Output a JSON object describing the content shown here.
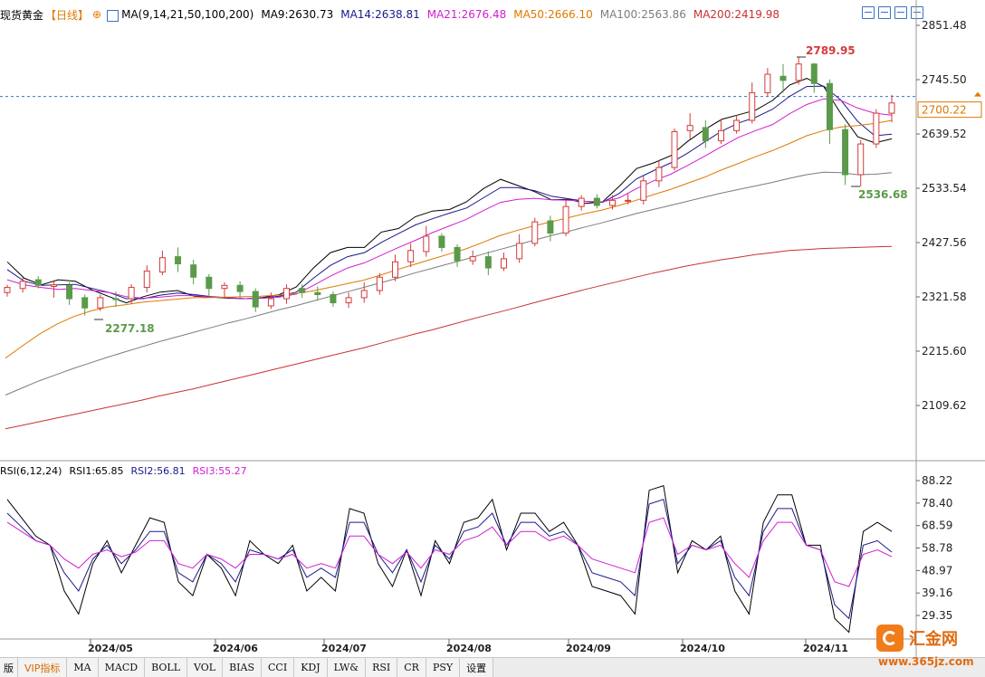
{
  "header": {
    "symbol": "现货黄金",
    "period": "【日线】",
    "ma_settings": "MA(9,14,21,50,100,200)",
    "ma9": "MA9:2630.73",
    "ma14": "MA14:2638.81",
    "ma21": "MA21:2676.48",
    "ma50": "MA50:2666.10",
    "ma100": "MA100:2563.86",
    "ma200": "MA200:2419.98"
  },
  "rsi_header": {
    "settings": "RSI(6,12,24)",
    "rsi1": "RSI1:65.85",
    "rsi2": "RSI2:56.81",
    "rsi3": "RSI3:55.27"
  },
  "tabs": [
    "版",
    "VIP指标",
    "MA",
    "MACD",
    "BOLL",
    "VOL",
    "BIAS",
    "CCI",
    "KDJ",
    "LW&",
    "RSI",
    "CR",
    "PSY",
    "设置"
  ],
  "watermark": {
    "name": "汇金网",
    "url": "www.365jz.com"
  },
  "colors": {
    "up": "#d43a3a",
    "down": "#5a9a4a",
    "ma9": "#000000",
    "ma14": "#1a1a8c",
    "ma21": "#d21ed2",
    "ma50": "#e07800",
    "ma100": "#7d7d7d",
    "ma200": "#c83232",
    "rsi1": "#000000",
    "rsi2": "#1a1a8c",
    "rsi3": "#d21ed2"
  },
  "chart_data": [
    {
      "type": "candlestick",
      "title": "现货黄金 日线",
      "y_ticks": [
        "2851.48",
        "2745.50",
        "2639.52",
        "2533.54",
        "2427.56",
        "2321.58",
        "2215.60",
        "2109.62"
      ],
      "ylim": [
        2050,
        2870
      ],
      "x_labels": [
        "2024/05",
        "2024/06",
        "2024/07",
        "2024/08",
        "2024/09",
        "2024/10",
        "2024/11"
      ],
      "current_price": "2700.22",
      "annotations": [
        {
          "label": "2789.95",
          "role": "high"
        },
        {
          "label": "2536.68",
          "role": "low"
        },
        {
          "label": "2277.18",
          "role": "low"
        }
      ],
      "ma_series": [
        {
          "name": "MA9",
          "values": [
            2390,
            2358,
            2345,
            2355,
            2352,
            2335,
            2322,
            2310,
            2322,
            2331,
            2334,
            2323,
            2321,
            2319,
            2318,
            2320,
            2326,
            2341,
            2378,
            2408,
            2418,
            2418,
            2448,
            2455,
            2478,
            2489,
            2492,
            2507,
            2533,
            2551,
            2539,
            2527,
            2511,
            2512,
            2504,
            2507,
            2538,
            2572,
            2583,
            2597,
            2625,
            2648,
            2668,
            2677,
            2686,
            2705,
            2735,
            2748,
            2732,
            2680,
            2634,
            2622,
            2630
          ]
        },
        {
          "name": "MA14",
          "values": [
            2375,
            2352,
            2344,
            2345,
            2346,
            2338,
            2330,
            2318,
            2318,
            2325,
            2329,
            2326,
            2322,
            2320,
            2318,
            2319,
            2323,
            2331,
            2358,
            2383,
            2400,
            2408,
            2428,
            2445,
            2462,
            2474,
            2485,
            2495,
            2515,
            2535,
            2535,
            2529,
            2518,
            2513,
            2508,
            2506,
            2524,
            2552,
            2568,
            2583,
            2602,
            2624,
            2645,
            2661,
            2672,
            2688,
            2713,
            2732,
            2733,
            2706,
            2664,
            2636,
            2639
          ]
        },
        {
          "name": "MA21",
          "values": [
            2355,
            2345,
            2340,
            2336,
            2338,
            2334,
            2330,
            2322,
            2319,
            2321,
            2324,
            2324,
            2321,
            2320,
            2318,
            2319,
            2321,
            2327,
            2344,
            2362,
            2378,
            2388,
            2403,
            2418,
            2432,
            2447,
            2460,
            2473,
            2490,
            2506,
            2512,
            2514,
            2511,
            2510,
            2508,
            2507,
            2515,
            2533,
            2548,
            2561,
            2578,
            2596,
            2615,
            2633,
            2646,
            2658,
            2679,
            2697,
            2708,
            2705,
            2690,
            2680,
            2676
          ]
        },
        {
          "name": "MA50",
          "values": [
            2202,
            2226,
            2249,
            2268,
            2283,
            2294,
            2302,
            2306,
            2311,
            2314,
            2317,
            2320,
            2320,
            2321,
            2322,
            2323,
            2325,
            2328,
            2333,
            2340,
            2347,
            2354,
            2364,
            2375,
            2385,
            2395,
            2405,
            2415,
            2428,
            2441,
            2451,
            2460,
            2468,
            2476,
            2484,
            2491,
            2500,
            2510,
            2521,
            2531,
            2543,
            2555,
            2569,
            2582,
            2595,
            2607,
            2621,
            2636,
            2646,
            2653,
            2656,
            2660,
            2666
          ]
        },
        {
          "name": "MA100",
          "values": [
            2130,
            2144,
            2158,
            2170,
            2182,
            2193,
            2204,
            2214,
            2224,
            2234,
            2243,
            2252,
            2261,
            2270,
            2278,
            2287,
            2296,
            2304,
            2313,
            2322,
            2331,
            2340,
            2349,
            2358,
            2368,
            2377,
            2386,
            2395,
            2405,
            2414,
            2423,
            2432,
            2441,
            2449,
            2458,
            2466,
            2475,
            2484,
            2492,
            2500,
            2508,
            2516,
            2524,
            2531,
            2538,
            2545,
            2553,
            2560,
            2565,
            2564,
            2560,
            2561,
            2564
          ]
        },
        {
          "name": "MA200",
          "values": [
            2064,
            2071,
            2078,
            2085,
            2092,
            2099,
            2106,
            2113,
            2120,
            2128,
            2135,
            2142,
            2150,
            2158,
            2166,
            2174,
            2182,
            2190,
            2198,
            2206,
            2214,
            2222,
            2231,
            2240,
            2249,
            2257,
            2266,
            2275,
            2284,
            2292,
            2301,
            2310,
            2319,
            2327,
            2336,
            2344,
            2352,
            2360,
            2368,
            2375,
            2382,
            2388,
            2394,
            2399,
            2404,
            2408,
            2412,
            2414,
            2416,
            2417,
            2418,
            2419,
            2420
          ]
        }
      ],
      "candles": [
        [
          2330,
          2340,
          2322,
          2345
        ],
        [
          2338,
          2352,
          2330,
          2360
        ],
        [
          2355,
          2344,
          2338,
          2362
        ],
        [
          2342,
          2345,
          2320,
          2354
        ],
        [
          2344,
          2318,
          2306,
          2350
        ],
        [
          2320,
          2300,
          2285,
          2326
        ],
        [
          2300,
          2320,
          2294,
          2326
        ],
        [
          2318,
          2317,
          2302,
          2332
        ],
        [
          2318,
          2340,
          2308,
          2346
        ],
        [
          2340,
          2372,
          2330,
          2383
        ],
        [
          2370,
          2398,
          2364,
          2412
        ],
        [
          2400,
          2386,
          2370,
          2418
        ],
        [
          2384,
          2360,
          2346,
          2394
        ],
        [
          2360,
          2338,
          2322,
          2366
        ],
        [
          2338,
          2344,
          2320,
          2350
        ],
        [
          2344,
          2332,
          2318,
          2352
        ],
        [
          2332,
          2302,
          2292,
          2338
        ],
        [
          2304,
          2318,
          2298,
          2330
        ],
        [
          2318,
          2338,
          2308,
          2346
        ],
        [
          2338,
          2330,
          2320,
          2346
        ],
        [
          2330,
          2326,
          2314,
          2342
        ],
        [
          2326,
          2310,
          2302,
          2332
        ],
        [
          2310,
          2320,
          2300,
          2330
        ],
        [
          2320,
          2334,
          2310,
          2350
        ],
        [
          2334,
          2360,
          2326,
          2368
        ],
        [
          2360,
          2390,
          2352,
          2404
        ],
        [
          2390,
          2412,
          2380,
          2426
        ],
        [
          2410,
          2440,
          2400,
          2460
        ],
        [
          2440,
          2418,
          2410,
          2446
        ],
        [
          2418,
          2392,
          2380,
          2424
        ],
        [
          2392,
          2400,
          2384,
          2412
        ],
        [
          2400,
          2378,
          2364,
          2410
        ],
        [
          2378,
          2396,
          2372,
          2408
        ],
        [
          2396,
          2426,
          2388,
          2444
        ],
        [
          2426,
          2468,
          2420,
          2476
        ],
        [
          2470,
          2446,
          2430,
          2480
        ],
        [
          2446,
          2498,
          2440,
          2512
        ],
        [
          2498,
          2514,
          2490,
          2520
        ],
        [
          2514,
          2500,
          2494,
          2522
        ],
        [
          2500,
          2510,
          2492,
          2520
        ],
        [
          2510,
          2510,
          2502,
          2524
        ],
        [
          2510,
          2548,
          2502,
          2558
        ],
        [
          2548,
          2574,
          2536,
          2588
        ],
        [
          2574,
          2644,
          2568,
          2650
        ],
        [
          2646,
          2656,
          2630,
          2680
        ],
        [
          2652,
          2626,
          2612,
          2666
        ],
        [
          2626,
          2646,
          2620,
          2668
        ],
        [
          2646,
          2666,
          2640,
          2676
        ],
        [
          2666,
          2720,
          2660,
          2740
        ],
        [
          2720,
          2756,
          2712,
          2768
        ],
        [
          2752,
          2744,
          2720,
          2776
        ],
        [
          2744,
          2776,
          2736,
          2790
        ],
        [
          2776,
          2738,
          2720,
          2778
        ],
        [
          2738,
          2648,
          2620,
          2746
        ],
        [
          2648,
          2560,
          2540,
          2658
        ],
        [
          2560,
          2620,
          2537,
          2628
        ],
        [
          2620,
          2680,
          2612,
          2688
        ],
        [
          2680,
          2700,
          2662,
          2716
        ]
      ]
    },
    {
      "type": "line",
      "title": "RSI(6,12,24)",
      "y_ticks": [
        "88.22",
        "78.40",
        "68.59",
        "58.78",
        "48.97",
        "39.16",
        "29.35"
      ],
      "ylim": [
        20,
        92
      ],
      "series": [
        {
          "name": "RSI1",
          "values": [
            80,
            72,
            64,
            60,
            40,
            30,
            52,
            62,
            48,
            60,
            72,
            70,
            44,
            38,
            56,
            50,
            38,
            62,
            56,
            52,
            60,
            40,
            46,
            40,
            76,
            74,
            52,
            42,
            58,
            38,
            62,
            52,
            70,
            72,
            80,
            58,
            74,
            74,
            66,
            70,
            60,
            42,
            40,
            38,
            30,
            84,
            86,
            48,
            62,
            58,
            64,
            40,
            30,
            70,
            82,
            82,
            60,
            60,
            28,
            22,
            66,
            70,
            66
          ]
        },
        {
          "name": "RSI2",
          "values": [
            74,
            68,
            62,
            60,
            48,
            40,
            54,
            60,
            52,
            58,
            66,
            66,
            48,
            44,
            56,
            52,
            44,
            58,
            56,
            54,
            58,
            46,
            50,
            46,
            70,
            70,
            56,
            48,
            58,
            44,
            60,
            54,
            66,
            68,
            74,
            60,
            70,
            70,
            64,
            66,
            60,
            48,
            46,
            44,
            38,
            78,
            80,
            52,
            60,
            58,
            62,
            46,
            38,
            66,
            76,
            76,
            60,
            58,
            34,
            28,
            60,
            62,
            57
          ]
        },
        {
          "name": "RSI3",
          "values": [
            70,
            66,
            62,
            60,
            54,
            50,
            56,
            58,
            55,
            57,
            62,
            62,
            52,
            50,
            56,
            54,
            50,
            56,
            56,
            54,
            56,
            50,
            52,
            50,
            64,
            64,
            56,
            52,
            57,
            50,
            58,
            56,
            62,
            64,
            68,
            60,
            66,
            66,
            62,
            64,
            60,
            54,
            52,
            50,
            48,
            70,
            72,
            56,
            60,
            58,
            60,
            52,
            46,
            62,
            70,
            70,
            60,
            58,
            44,
            42,
            56,
            58,
            55
          ]
        }
      ]
    }
  ]
}
